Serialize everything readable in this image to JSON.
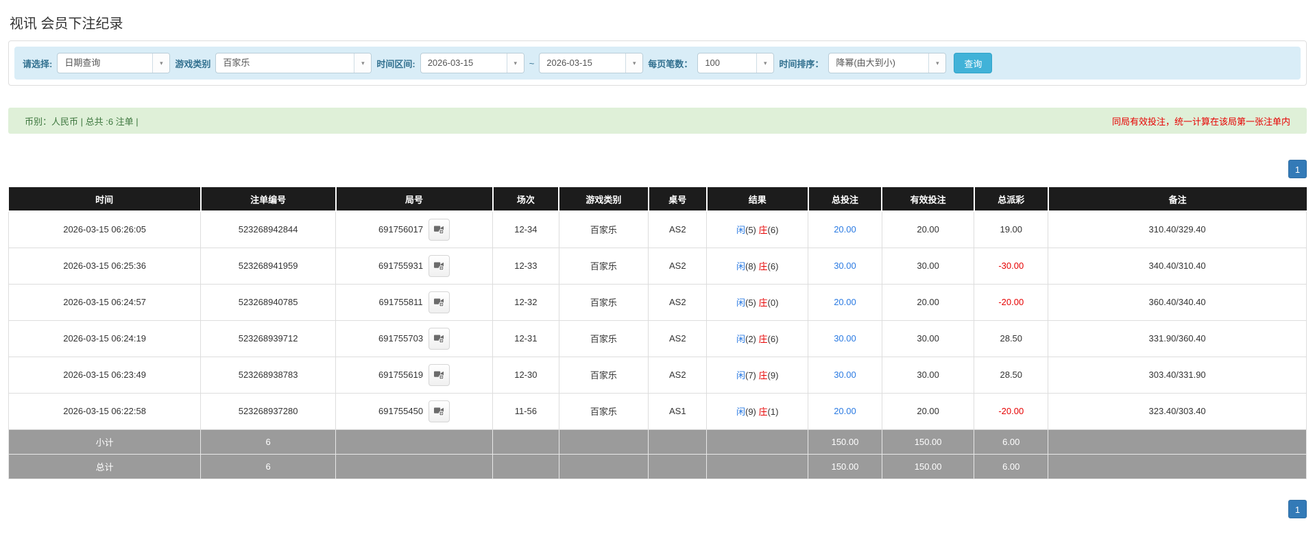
{
  "page": {
    "title": "视讯 会员下注纪录"
  },
  "colors": {
    "accent_blue": "#2a7ae2",
    "negative_red": "#e60000",
    "header_black": "#1c1c1c",
    "footer_gray": "#9b9b9b",
    "filter_bg": "#d9edf7",
    "summary_bg": "#dff0d8",
    "pager_blue": "#337ab7",
    "search_btn_blue": "#41b2d8"
  },
  "icons": {
    "select_arrow": "▾",
    "video_replay": "film-camera-icon"
  },
  "filter": {
    "query_type_label": "请选择:",
    "query_type_value": "日期查询",
    "game_type_label": "游戏类别",
    "game_type_value": "百家乐",
    "time_range_label": "时间区间:",
    "date_from": "2026-03-15",
    "tilde": "~",
    "date_to": "2026-03-15",
    "page_size_label": "每页笔数：",
    "page_size_value": "100",
    "sort_label": "时间排序：",
    "sort_value": "降幂(由大到小)",
    "search_button": "查询"
  },
  "summary": {
    "left_text": "币别：人民币 | 总共 :6 注单 |",
    "right_text": "同局有效投注，统一计算在该局第一张注单内"
  },
  "pagination": {
    "page": "1"
  },
  "table": {
    "headers": [
      "时间",
      "注单编号",
      "局号",
      "场次",
      "游戏类别",
      "桌号",
      "结果",
      "总投注",
      "有效投注",
      "总派彩",
      "备注"
    ],
    "rows": [
      {
        "time": "2026-03-15 06:26:05",
        "bet_id": "523268942844",
        "round_id": "691756017",
        "session": "12-34",
        "game": "百家乐",
        "table_no": "AS2",
        "result_player_label": "闲",
        "result_player_n": "(5)",
        "result_banker_label": "庄",
        "result_banker_n": "(6)",
        "total_bet": "20.00",
        "valid_bet": "20.00",
        "payout": "19.00",
        "remark": "310.40/329.40"
      },
      {
        "time": "2026-03-15 06:25:36",
        "bet_id": "523268941959",
        "round_id": "691755931",
        "session": "12-33",
        "game": "百家乐",
        "table_no": "AS2",
        "result_player_label": "闲",
        "result_player_n": "(8)",
        "result_banker_label": "庄",
        "result_banker_n": "(6)",
        "total_bet": "30.00",
        "valid_bet": "30.00",
        "payout": "-30.00",
        "remark": "340.40/310.40"
      },
      {
        "time": "2026-03-15 06:24:57",
        "bet_id": "523268940785",
        "round_id": "691755811",
        "session": "12-32",
        "game": "百家乐",
        "table_no": "AS2",
        "result_player_label": "闲",
        "result_player_n": "(5)",
        "result_banker_label": "庄",
        "result_banker_n": "(0)",
        "total_bet": "20.00",
        "valid_bet": "20.00",
        "payout": "-20.00",
        "remark": "360.40/340.40"
      },
      {
        "time": "2026-03-15 06:24:19",
        "bet_id": "523268939712",
        "round_id": "691755703",
        "session": "12-31",
        "game": "百家乐",
        "table_no": "AS2",
        "result_player_label": "闲",
        "result_player_n": "(2)",
        "result_banker_label": "庄",
        "result_banker_n": "(6)",
        "total_bet": "30.00",
        "valid_bet": "30.00",
        "payout": "28.50",
        "remark": "331.90/360.40"
      },
      {
        "time": "2026-03-15 06:23:49",
        "bet_id": "523268938783",
        "round_id": "691755619",
        "session": "12-30",
        "game": "百家乐",
        "table_no": "AS2",
        "result_player_label": "闲",
        "result_player_n": "(7)",
        "result_banker_label": "庄",
        "result_banker_n": "(9)",
        "total_bet": "30.00",
        "valid_bet": "30.00",
        "payout": "28.50",
        "remark": "303.40/331.90"
      },
      {
        "time": "2026-03-15 06:22:58",
        "bet_id": "523268937280",
        "round_id": "691755450",
        "session": "11-56",
        "game": "百家乐",
        "table_no": "AS1",
        "result_player_label": "闲",
        "result_player_n": "(9)",
        "result_banker_label": "庄",
        "result_banker_n": "(1)",
        "total_bet": "20.00",
        "valid_bet": "20.00",
        "payout": "-20.00",
        "remark": "323.40/303.40"
      }
    ],
    "subtotal": {
      "label": "小计",
      "count": "6",
      "total_bet": "150.00",
      "valid_bet": "150.00",
      "payout": "6.00"
    },
    "total": {
      "label": "总计",
      "count": "6",
      "total_bet": "150.00",
      "valid_bet": "150.00",
      "payout": "6.00"
    }
  }
}
